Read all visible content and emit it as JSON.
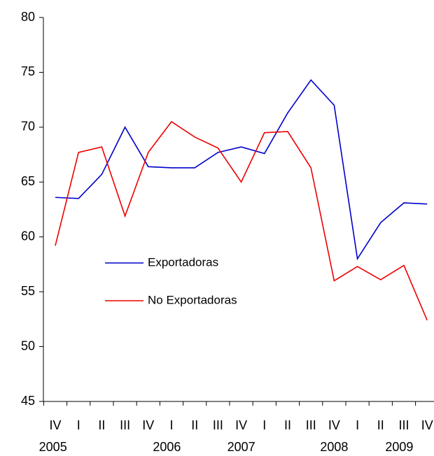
{
  "chart_data": {
    "type": "line",
    "categories": [
      "IV",
      "I",
      "II",
      "III",
      "IV",
      "I",
      "II",
      "III",
      "IV",
      "I",
      "II",
      "III",
      "IV",
      "I",
      "II",
      "III",
      "IV"
    ],
    "years": [
      "2005",
      "2006",
      "2007",
      "2008",
      "2009"
    ],
    "series": [
      {
        "name": "Exportadoras",
        "color": "#0000cc",
        "values": [
          63.6,
          63.5,
          65.7,
          70.0,
          66.4,
          66.3,
          66.3,
          67.7,
          68.2,
          67.6,
          71.3,
          74.3,
          72.0,
          58.0,
          61.3,
          63.1,
          63.0
        ]
      },
      {
        "name": "No Exportadoras",
        "color": "#ee0000",
        "values": [
          59.2,
          67.7,
          68.2,
          61.9,
          67.7,
          70.5,
          69.1,
          68.1,
          65.0,
          69.5,
          69.6,
          66.3,
          56.0,
          57.3,
          56.1,
          57.4,
          52.4
        ]
      }
    ],
    "ylim": [
      45,
      80
    ],
    "yticks": [
      45,
      50,
      55,
      60,
      65,
      70,
      75,
      80
    ],
    "grid": false
  }
}
